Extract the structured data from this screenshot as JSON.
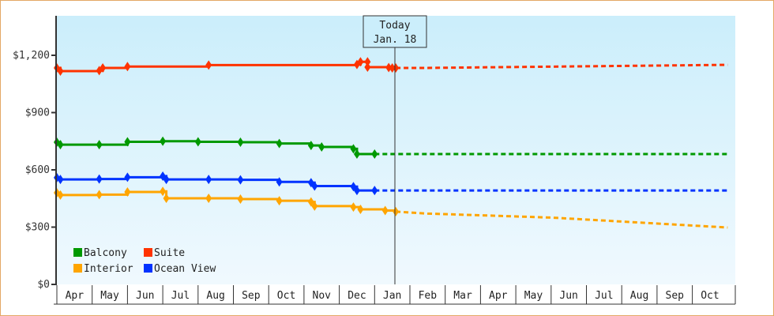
{
  "chart_data": {
    "type": "line",
    "title": "",
    "xlabel": "",
    "ylabel": "",
    "ylim": [
      0,
      1400
    ],
    "y_ticks": [
      "$0",
      "$300",
      "$600",
      "$900",
      "$1,200"
    ],
    "y_tick_values": [
      0,
      300,
      600,
      900,
      1200
    ],
    "x_tick_labels": [
      "Apr",
      "May",
      "Jun",
      "Jul",
      "Aug",
      "Sep",
      "Oct",
      "Nov",
      "Dec",
      "Jan",
      "Feb",
      "Mar",
      "Apr",
      "May",
      "Jun",
      "Jul",
      "Aug",
      "Sep",
      "Oct"
    ],
    "grid": false,
    "legend_position": "bottom-left inside",
    "annotation": {
      "line1": "Today",
      "line2": "Jan. 18"
    },
    "series": [
      {
        "name": "Balcony",
        "color": "#009900",
        "history": [
          [
            0,
            745
          ],
          [
            0.1,
            732
          ],
          [
            1.2,
            732
          ],
          [
            2,
            747
          ],
          [
            3,
            750
          ],
          [
            4,
            747
          ],
          [
            5.2,
            745
          ],
          [
            6.3,
            738
          ],
          [
            7.2,
            728
          ],
          [
            7.5,
            720
          ],
          [
            8.4,
            710
          ],
          [
            8.5,
            683
          ],
          [
            9,
            683
          ]
        ],
        "projection": [
          [
            9,
            683
          ],
          [
            19,
            683
          ]
        ]
      },
      {
        "name": "Suite",
        "color": "#ff3300",
        "history": [
          [
            0,
            1134
          ],
          [
            0.1,
            1117
          ],
          [
            1.2,
            1120
          ],
          [
            1.3,
            1134
          ],
          [
            2,
            1141
          ],
          [
            4.3,
            1149
          ],
          [
            8.5,
            1152
          ],
          [
            8.6,
            1166
          ],
          [
            8.8,
            1166
          ],
          [
            8.8,
            1138
          ],
          [
            9.4,
            1136
          ],
          [
            9.5,
            1134
          ],
          [
            9.6,
            1134
          ]
        ],
        "projection": [
          [
            9.6,
            1134
          ],
          [
            10.5,
            1134
          ],
          [
            19,
            1150
          ]
        ]
      },
      {
        "name": "Interior",
        "color": "#ffa500",
        "history": [
          [
            0,
            480
          ],
          [
            0.1,
            468
          ],
          [
            1.2,
            470
          ],
          [
            2,
            484
          ],
          [
            3,
            487
          ],
          [
            3.1,
            451
          ],
          [
            4.3,
            451
          ],
          [
            5.2,
            447
          ],
          [
            6.3,
            438
          ],
          [
            7.2,
            432
          ],
          [
            7.3,
            410
          ],
          [
            8.4,
            405
          ],
          [
            8.6,
            393
          ],
          [
            9.3,
            387
          ],
          [
            9.6,
            381
          ]
        ],
        "projection": [
          [
            9.6,
            381
          ],
          [
            10.5,
            371
          ],
          [
            14,
            350
          ],
          [
            19,
            298
          ]
        ]
      },
      {
        "name": "Ocean View",
        "color": "#0033ff",
        "history": [
          [
            0,
            559
          ],
          [
            0.1,
            550
          ],
          [
            1.2,
            552
          ],
          [
            2,
            561
          ],
          [
            3,
            567
          ],
          [
            3.1,
            550
          ],
          [
            4.3,
            550
          ],
          [
            5.2,
            548
          ],
          [
            6.3,
            537
          ],
          [
            7.2,
            533
          ],
          [
            7.3,
            515
          ],
          [
            8.4,
            512
          ],
          [
            8.5,
            492
          ],
          [
            9,
            492
          ]
        ],
        "projection": [
          [
            9,
            492
          ],
          [
            19,
            492
          ]
        ]
      }
    ]
  },
  "legend": {
    "items": [
      {
        "label": "Balcony",
        "color": "#009900"
      },
      {
        "label": "Suite",
        "color": "#ff3300"
      },
      {
        "label": "Interior",
        "color": "#ffa500"
      },
      {
        "label": "Ocean View",
        "color": "#0033ff"
      }
    ]
  },
  "today_box": {
    "line1": "Today",
    "line2": "Jan. 18"
  },
  "axis": {
    "y_labels": [
      "$0",
      "$300",
      "$600",
      "$900",
      "$1,200"
    ],
    "months": [
      "Apr",
      "May",
      "Jun",
      "Jul",
      "Aug",
      "Sep",
      "Oct",
      "Nov",
      "Dec",
      "Jan",
      "Feb",
      "Mar",
      "Apr",
      "May",
      "Jun",
      "Jul",
      "Aug",
      "Sep",
      "Oct"
    ]
  }
}
